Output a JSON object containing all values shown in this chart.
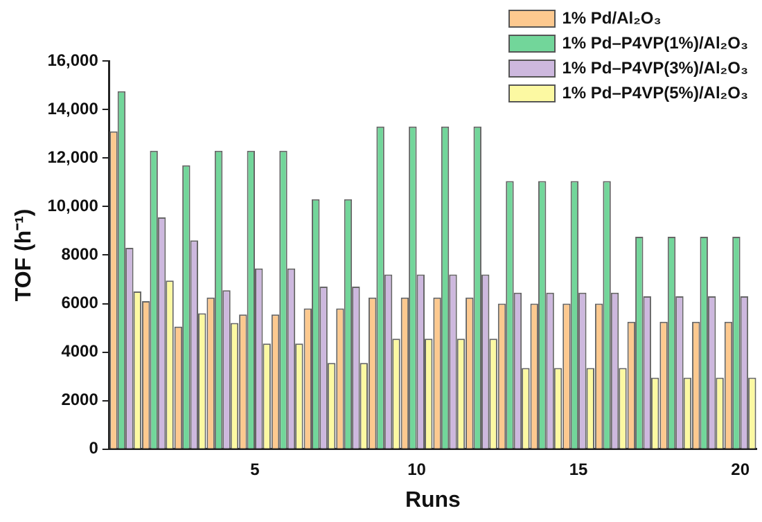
{
  "chart_data": {
    "type": "bar",
    "xlabel": "Runs",
    "ylabel": "TOF (h⁻¹)",
    "categories": [
      null,
      null,
      null,
      null,
      "5",
      null,
      null,
      null,
      null,
      "10",
      null,
      null,
      null,
      null,
      "15",
      null,
      null,
      null,
      null,
      "20"
    ],
    "series": [
      {
        "name": "1% Pd/Al₂O₃",
        "color": "#fdc98f",
        "values": [
          13100,
          6100,
          5050,
          6250,
          5550,
          5550,
          5800,
          5800,
          6250,
          6250,
          6250,
          6250,
          6000,
          6000,
          6000,
          6000,
          5250,
          5250,
          5250,
          5250
        ]
      },
      {
        "name": "1% Pd–P4VP(1%)/Al₂O₃",
        "color": "#72d69a",
        "values": [
          14750,
          12300,
          11700,
          12300,
          12300,
          12300,
          10300,
          10300,
          13300,
          13300,
          13300,
          13300,
          11050,
          11050,
          11050,
          11050,
          8750,
          8750,
          8750,
          8750
        ]
      },
      {
        "name": "1% Pd–P4VP(3%)/Al₂O₃",
        "color": "#cdb8de",
        "values": [
          8300,
          9550,
          8600,
          6550,
          7450,
          7450,
          6700,
          6700,
          7200,
          7200,
          7200,
          7200,
          6450,
          6450,
          6450,
          6450,
          6300,
          6300,
          6300,
          6300
        ]
      },
      {
        "name": "1% Pd–P4VP(5%)/Al₂O₃",
        "color": "#fcf9a2",
        "values": [
          6500,
          6950,
          5600,
          5200,
          4350,
          4350,
          3550,
          3550,
          4550,
          4550,
          4550,
          4550,
          3350,
          3350,
          3350,
          3350,
          2950,
          2950,
          2950,
          2950
        ]
      }
    ],
    "ylim": [
      0,
      16000
    ],
    "yticks": [
      0,
      2000,
      4000,
      6000,
      8000,
      {
        "value": 10000,
        "label": "10,000"
      },
      {
        "value": 12000,
        "label": "12,000"
      },
      {
        "value": 14000,
        "label": "14,000"
      },
      {
        "value": 16000,
        "label": "16,000"
      }
    ],
    "grid": false,
    "legend": "top right"
  }
}
